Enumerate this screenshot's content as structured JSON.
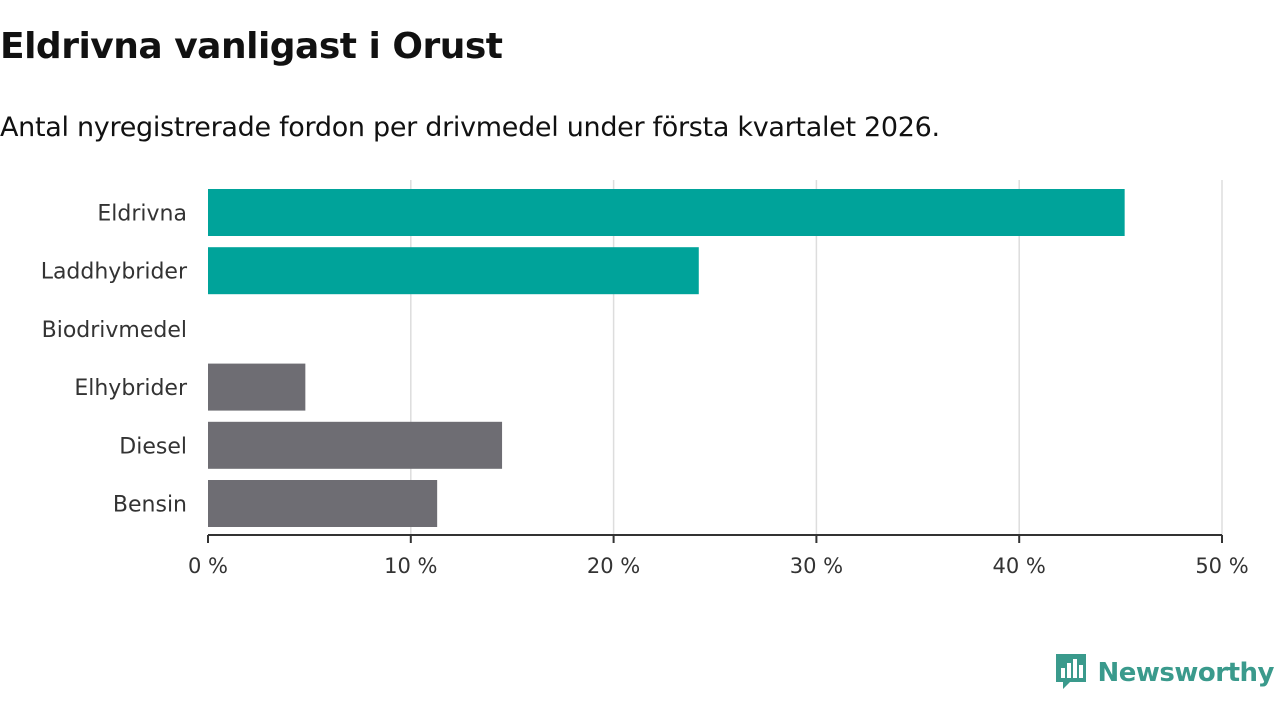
{
  "header": {
    "title": "Eldrivna vanligast i Orust",
    "subtitle": "Antal nyregistrerade fordon per drivmedel under första kvartalet 2026."
  },
  "chart_data": {
    "type": "bar",
    "orientation": "horizontal",
    "categories": [
      "Eldrivna",
      "Laddhybrider",
      "Biodrivmedel",
      "Elhybrider",
      "Diesel",
      "Bensin"
    ],
    "values": [
      45.2,
      24.2,
      0,
      4.8,
      14.5,
      11.3
    ],
    "highlighted": [
      true,
      true,
      false,
      false,
      false,
      false
    ],
    "xlim": [
      0,
      50
    ],
    "xticks": [
      0,
      10,
      20,
      30,
      40,
      50
    ],
    "xtick_labels": [
      "0 %",
      "10 %",
      "20 %",
      "30 %",
      "40 %",
      "50 %"
    ],
    "grid": true,
    "colors": {
      "highlight": "#00a39a",
      "default": "#6e6d73",
      "grid": "#dddddd",
      "axis": "#333333"
    }
  },
  "brand": {
    "name": "Newsworthy",
    "icon": "newsworthy-logo-icon",
    "color": "#3a9a8c"
  }
}
